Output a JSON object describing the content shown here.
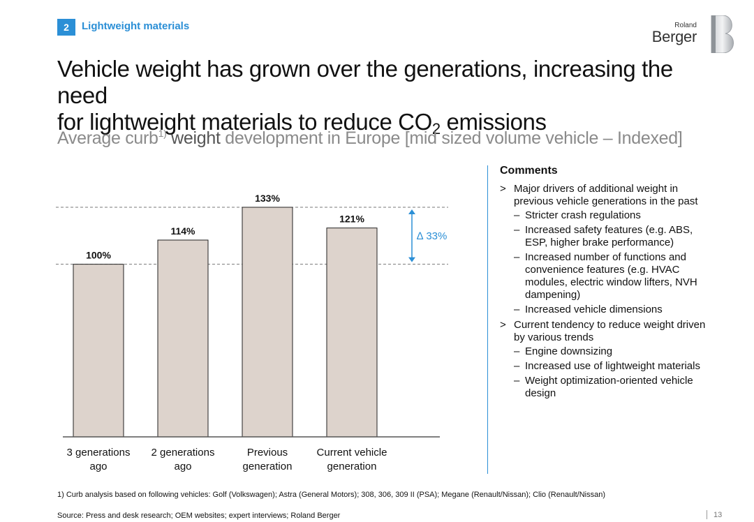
{
  "section": {
    "number": "2",
    "title": "Lightweight materials"
  },
  "logo": {
    "line1": "Roland",
    "line2": "Berger"
  },
  "headline": {
    "line1": "Vehicle weight has grown over the generations, increasing the need",
    "line2_pre": "for lightweight materials to reduce CO",
    "line2_sub": "2",
    "line2_post": " emissions"
  },
  "subtitle": {
    "part1": "Average curb",
    "sup": "1)",
    "part2": " weight",
    "part3": " development in Europe [mid sized volume vehicle – Indexed]"
  },
  "chart_data": {
    "type": "bar",
    "categories": [
      "3 generations ago",
      "2 generations ago",
      "Previous generation",
      "Current vehicle generation"
    ],
    "category_lines": [
      [
        "3 generations",
        "ago"
      ],
      [
        "2 generations",
        "ago"
      ],
      [
        "Previous",
        "generation"
      ],
      [
        "Current vehicle",
        "generation"
      ]
    ],
    "values": [
      100,
      114,
      133,
      121
    ],
    "data_labels": [
      "100%",
      "114%",
      "133%",
      "121%"
    ],
    "ylim": [
      0,
      133
    ],
    "reference_lines": [
      100,
      133
    ],
    "delta_label": "∆ 33%",
    "bar_color": "#ddd3cc",
    "delta_color": "#2b8fd6"
  },
  "comments": {
    "title": "Comments",
    "items": [
      {
        "text": "Major drivers of additional weight in previous vehicle generations in the past",
        "subs": [
          "Stricter crash regulations",
          "Increased safety features (e.g. ABS, ESP, higher brake performance)",
          "Increased number of functions and convenience features (e.g. HVAC modules, electric window lifters, NVH dampening)",
          "Increased vehicle dimensions"
        ]
      },
      {
        "text": "Current tendency to reduce weight driven by various trends",
        "subs": [
          "Engine downsizing",
          "Increased use of lightweight materials",
          "Weight optimization-oriented vehicle design"
        ]
      }
    ]
  },
  "footnote": "1) Curb analysis based on following vehicles: Golf (Volkswagen); Astra (General Motors); 308, 306, 309 II (PSA); Megane (Renault/Nissan); Clio (Renault/Nissan)",
  "source": "Source: Press and desk research; OEM websites; expert interviews; Roland Berger",
  "page_number": "13",
  "colors": {
    "accent": "#2b8fd6"
  }
}
